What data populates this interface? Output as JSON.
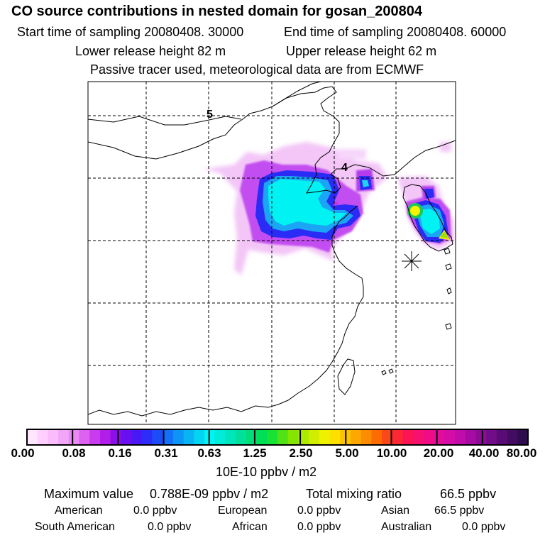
{
  "header": {
    "title": "CO  source contributions in nested domain for gosan_200804",
    "start_label": "Start time of sampling 20080408. 30000",
    "end_label": "End time of sampling 20080408. 60000",
    "lower_label": "Lower release height   82 m",
    "upper_label": "Upper release height   62 m",
    "tracer_label": "Passive tracer used, meteorological data are from ECMWF"
  },
  "map": {
    "contour_labels": [
      "5",
      "4"
    ],
    "receptor_marker": "asterisk-star",
    "max_value_color": "#f7f300"
  },
  "colorbar": {
    "tick_labels": [
      "0.00",
      "0.08",
      "0.16",
      "0.31",
      "0.63",
      "1.25",
      "2.50",
      "5.00",
      "10.00",
      "20.00",
      "40.00",
      "80.00"
    ],
    "unit_label": "10E-10 ppbv / m2",
    "colors": [
      "#ffe6ff",
      "#ffd0ff",
      "#fbbcfb",
      "#f2a6f8",
      "#ea88f5",
      "#dd62f2",
      "#c93cee",
      "#b01ee8",
      "#8c0ee8",
      "#6a10f0",
      "#4a18f4",
      "#2e2cf8",
      "#1c4cf8",
      "#1470f8",
      "#0c94f6",
      "#08b4f4",
      "#04d4f2",
      "#00f2f2",
      "#00ecd8",
      "#00e6bc",
      "#00e09a",
      "#00de78",
      "#00de56",
      "#18e234",
      "#50e214",
      "#84e600",
      "#acea00",
      "#d2ee00",
      "#eef200",
      "#fce000",
      "#fcc400",
      "#fca800",
      "#fc8c00",
      "#fc6c00",
      "#fc4818",
      "#fc2836",
      "#fc1454",
      "#f81070",
      "#f00c86",
      "#e40c9a",
      "#d40ca8",
      "#c00caa",
      "#a60ca4",
      "#8c0c98",
      "#720c88",
      "#5a0c76",
      "#420c62",
      "#2e0c4e"
    ]
  },
  "stats": {
    "maximum_label": "Maximum value",
    "maximum_value": "0.788E-09 ppbv / m2",
    "total_label": "Total mixing ratio",
    "total_value": "66.5 ppbv",
    "regions": [
      {
        "name": "American",
        "value": "0.0 ppbv"
      },
      {
        "name": "European",
        "value": "0.0 ppbv"
      },
      {
        "name": "Asian",
        "value": "66.5 ppbv"
      },
      {
        "name": "South American",
        "value": "0.0 ppbv"
      },
      {
        "name": "African",
        "value": "0.0 ppbv"
      },
      {
        "name": "Australian",
        "value": "0.0 ppbv"
      }
    ]
  }
}
